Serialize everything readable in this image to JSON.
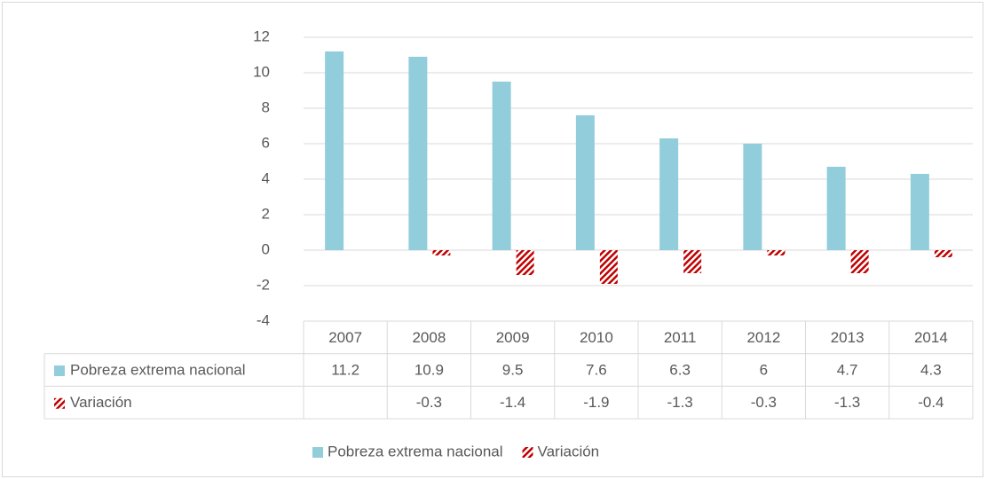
{
  "chart_data": {
    "type": "bar",
    "categories": [
      "2007",
      "2008",
      "2009",
      "2010",
      "2011",
      "2012",
      "2013",
      "2014"
    ],
    "series": [
      {
        "name": "Pobreza extrema nacional",
        "color": "#92cddc",
        "values": [
          11.2,
          10.9,
          9.5,
          7.6,
          6.3,
          6,
          4.7,
          4.3
        ]
      },
      {
        "name": "Variación",
        "color": "#c00000",
        "pattern": "hatch",
        "values": [
          null,
          -0.3,
          -1.4,
          -1.9,
          -1.3,
          -0.3,
          -1.3,
          -0.4
        ]
      }
    ],
    "ylim": [
      -4,
      12
    ],
    "yticks": [
      -4,
      -2,
      0,
      2,
      4,
      6,
      8,
      10,
      12
    ],
    "grid": true,
    "data_table": true,
    "legend": "bottom"
  }
}
